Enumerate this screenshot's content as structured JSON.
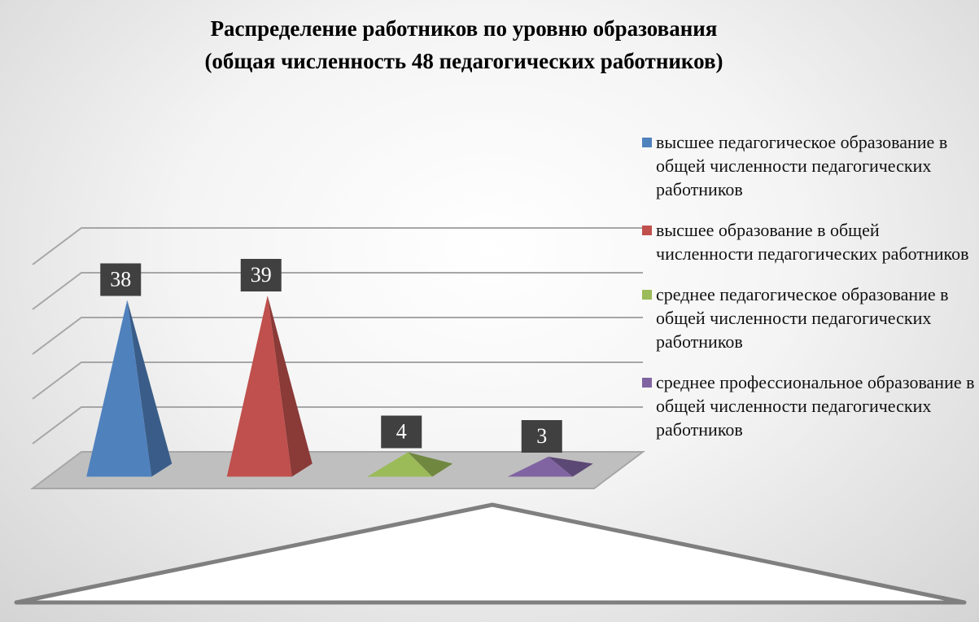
{
  "chart_data": {
    "type": "pyramid3d",
    "title": "Распределение работников по уровню образования",
    "subtitle": "(общая численность 48 педагогических работников)",
    "series": [
      {
        "name": "высшее педагогическое образование в общей численности педагогических работников",
        "color": "#4f81bd",
        "values": [
          38
        ]
      },
      {
        "name": "высшее образование в общей численности педагогических работников",
        "color": "#c0504d",
        "values": [
          39
        ]
      },
      {
        "name": "среднее педагогическое образование в общей численности педагогических работников",
        "color": "#9bbb59",
        "values": [
          4
        ]
      },
      {
        "name": "среднее профессиональное образование в общей численности педагогических работников",
        "color": "#8064a2",
        "values": [
          3
        ]
      }
    ],
    "ylim": [
      0,
      50
    ],
    "yticks": [
      0,
      10,
      20,
      30,
      40,
      50
    ],
    "grid": true,
    "legend": "right"
  }
}
